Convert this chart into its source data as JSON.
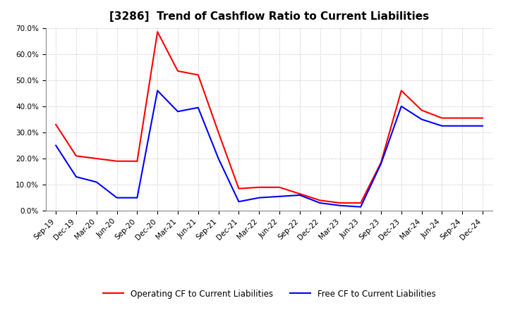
{
  "title": "[3286]  Trend of Cashflow Ratio to Current Liabilities",
  "x_labels": [
    "Sep-19",
    "Dec-19",
    "Mar-20",
    "Jun-20",
    "Sep-20",
    "Dec-20",
    "Mar-21",
    "Jun-21",
    "Sep-21",
    "Dec-21",
    "Mar-22",
    "Jun-22",
    "Sep-22",
    "Dec-22",
    "Mar-23",
    "Jun-23",
    "Sep-23",
    "Dec-23",
    "Mar-24",
    "Jun-24",
    "Sep-24",
    "Dec-24"
  ],
  "operating_cf": [
    0.33,
    0.21,
    0.2,
    0.19,
    0.19,
    0.685,
    0.535,
    0.52,
    0.3,
    0.085,
    0.09,
    0.09,
    0.065,
    0.04,
    0.03,
    0.03,
    0.185,
    0.46,
    0.385,
    0.355,
    0.355,
    0.355
  ],
  "free_cf": [
    0.25,
    0.13,
    0.11,
    0.05,
    0.05,
    0.46,
    0.38,
    0.395,
    0.2,
    0.035,
    0.05,
    0.055,
    0.06,
    0.03,
    0.02,
    0.015,
    0.18,
    0.4,
    0.35,
    0.325,
    0.325,
    0.325
  ],
  "ylim": [
    0.0,
    0.7
  ],
  "yticks": [
    0.0,
    0.1,
    0.2,
    0.3,
    0.4,
    0.5,
    0.6,
    0.7
  ],
  "operating_color": "#FF0000",
  "free_color": "#0000FF",
  "bg_color": "#FFFFFF",
  "plot_bg_color": "#FFFFFF",
  "grid_color": "#BBBBBB",
  "title_fontsize": 11,
  "tick_fontsize": 7.5,
  "legend_fontsize": 8.5
}
